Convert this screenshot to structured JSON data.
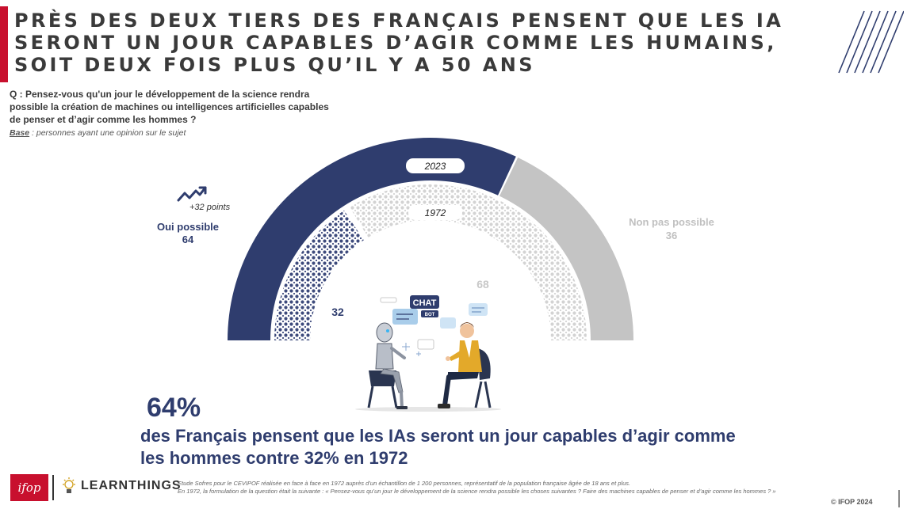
{
  "title": "Près des deux tiers des Français pensent que les IA seront un jour capables d’agir comme les humains, soit deux fois plus qu’il y a 50 ans",
  "question": "Q : Pensez-vous qu'un jour le développement de la science rendra possible la création de machines ou intelligences artificielles capables de penser et d’agir comme les hommes ?",
  "base_label": "Base",
  "base_text": " : personnes ayant une opinion sur le sujet",
  "colors": {
    "accent_red": "#c8102e",
    "navy": "#2f3d6e",
    "gray": "#c4c4c4",
    "title": "#3a3a3a"
  },
  "chart_data": {
    "type": "pie",
    "subtype": "semi-donut (two concentric rings)",
    "categories": [
      "Oui possible",
      "Non pas possible"
    ],
    "series": [
      {
        "name": "2023",
        "values": [
          64,
          36
        ]
      },
      {
        "name": "1972",
        "values": [
          32,
          68
        ]
      }
    ],
    "ring_labels": [
      "2023",
      "1972"
    ],
    "labels": {
      "oui_name": "Oui possible",
      "oui_value": "64",
      "non_name": "Non pas possible",
      "non_value": "36",
      "oui_1972": "32",
      "non_1972": "68"
    },
    "annotation": "+32 points",
    "trend_icon": "trending-up-icon",
    "illustration": "chatbot-robot-human-conversation",
    "bubble_text": [
      "CHAT",
      "BOT"
    ]
  },
  "highlight": {
    "big_number": "64%",
    "text": "des Français pensent que les IAs seront un jour capables d’agir comme les hommes contre 32% en 1972"
  },
  "logos": {
    "ifop": "ifop",
    "learnthings": "LEARNTHINGS"
  },
  "footnote": [
    "Etude Sofres pour le CEVIPOF réalisée en face à face en 1972 auprès d’un échantillon de 1 200 personnes, représentatif de la population française âgée de 18 ans et plus.",
    "En 1972, la formulation de la question était la suivante : « Pensez-vous qu’un jour le développement de la science rendra possible les choses suivantes ?  Faire des machines capables de penser et d’agir comme les hommes ? »"
  ],
  "copyright": "© IFOP 2024"
}
